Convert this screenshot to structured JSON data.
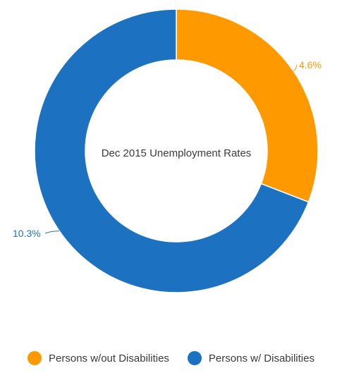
{
  "chart_data": {
    "type": "pie",
    "title": "Dec 2015 Unemployment Rates",
    "series": [
      {
        "name": "Persons w/out Disabilities",
        "value": 4.6,
        "label": "4.6%",
        "color": "#ff9900"
      },
      {
        "name": "Persons w/ Disabilities",
        "value": 10.3,
        "label": "10.3%",
        "color": "#1c72c0"
      }
    ],
    "legend_position": "bottom",
    "donut": true
  }
}
